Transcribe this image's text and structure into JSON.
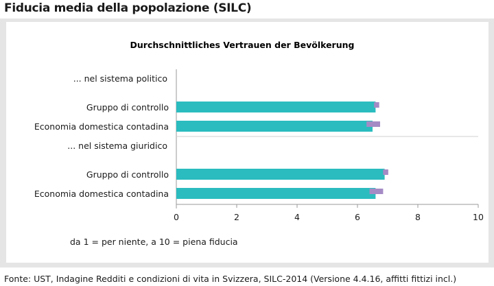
{
  "header": {
    "title": "Fiducia media della popolazione (SILC)"
  },
  "footer": {
    "source": "Fonte: UST, Indagine Redditi e condizioni di vita in Svizzera, SILC-2014 (Versione 4.4.16, affitti fittizi incl.)"
  },
  "chart_data": {
    "type": "bar",
    "orientation": "horizontal",
    "title": "Durchschnittliches Vertrauen der Bevölkerung",
    "xlabel": "",
    "note": "da 1 = per niente, a 10 = piena fiducia",
    "xlim": [
      0,
      10
    ],
    "xticks": [
      0,
      2,
      4,
      6,
      8,
      10
    ],
    "grid": false,
    "groups": [
      {
        "label": "... nel sistema politico",
        "rows": [
          {
            "label": "Gruppo di controllo",
            "value": 6.6,
            "ci": [
              6.55,
              6.72
            ]
          },
          {
            "label": "Economia domestica contadina",
            "value": 6.5,
            "ci": [
              6.3,
              6.75
            ]
          }
        ]
      },
      {
        "label": "... nel sistema giuridico",
        "rows": [
          {
            "label": "Gruppo di controllo",
            "value": 6.9,
            "ci": [
              6.85,
              7.02
            ]
          },
          {
            "label": "Economia domestica contadina",
            "value": 6.6,
            "ci": [
              6.4,
              6.85
            ]
          }
        ]
      }
    ],
    "colors": {
      "bar": "#2bbcbf",
      "ci": "#a58bc5",
      "axis": "#9a9a9a"
    }
  }
}
